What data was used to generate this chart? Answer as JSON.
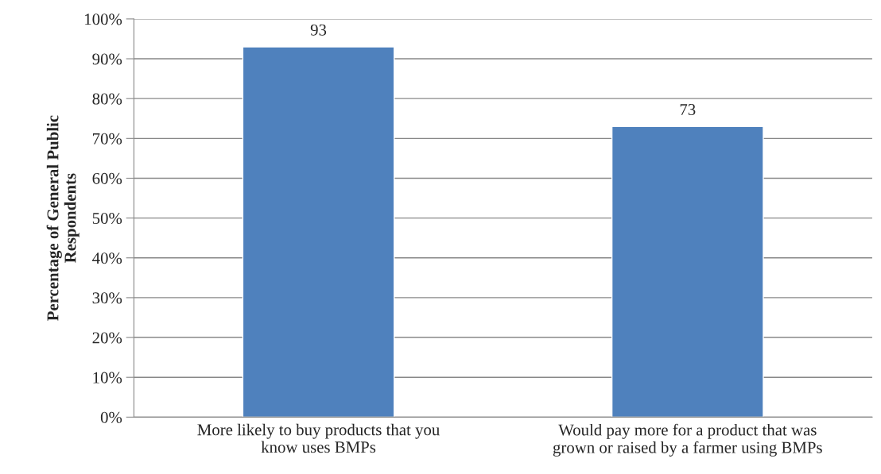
{
  "chart_data": {
    "type": "bar",
    "ylabel": "Percentage of General Public\nRespondents",
    "categories": [
      "More likely to buy products that you\nknow uses BMPs",
      "Would pay more for a product that was\ngrown or raised by a farmer using BMPs"
    ],
    "values": [
      93,
      73
    ],
    "color": "#4f81bd",
    "ylim": [
      0,
      100
    ],
    "yticks": [
      {
        "value": 0,
        "label": "0%"
      },
      {
        "value": 10,
        "label": "10%"
      },
      {
        "value": 20,
        "label": "20%"
      },
      {
        "value": 30,
        "label": "30%"
      },
      {
        "value": 40,
        "label": "40%"
      },
      {
        "value": 50,
        "label": "50%"
      },
      {
        "value": 60,
        "label": "60%"
      },
      {
        "value": 70,
        "label": "70%"
      },
      {
        "value": 80,
        "label": "80%"
      },
      {
        "value": 90,
        "label": "90%"
      },
      {
        "value": 100,
        "label": "100%"
      }
    ],
    "grid": "y",
    "data_labels": true
  }
}
